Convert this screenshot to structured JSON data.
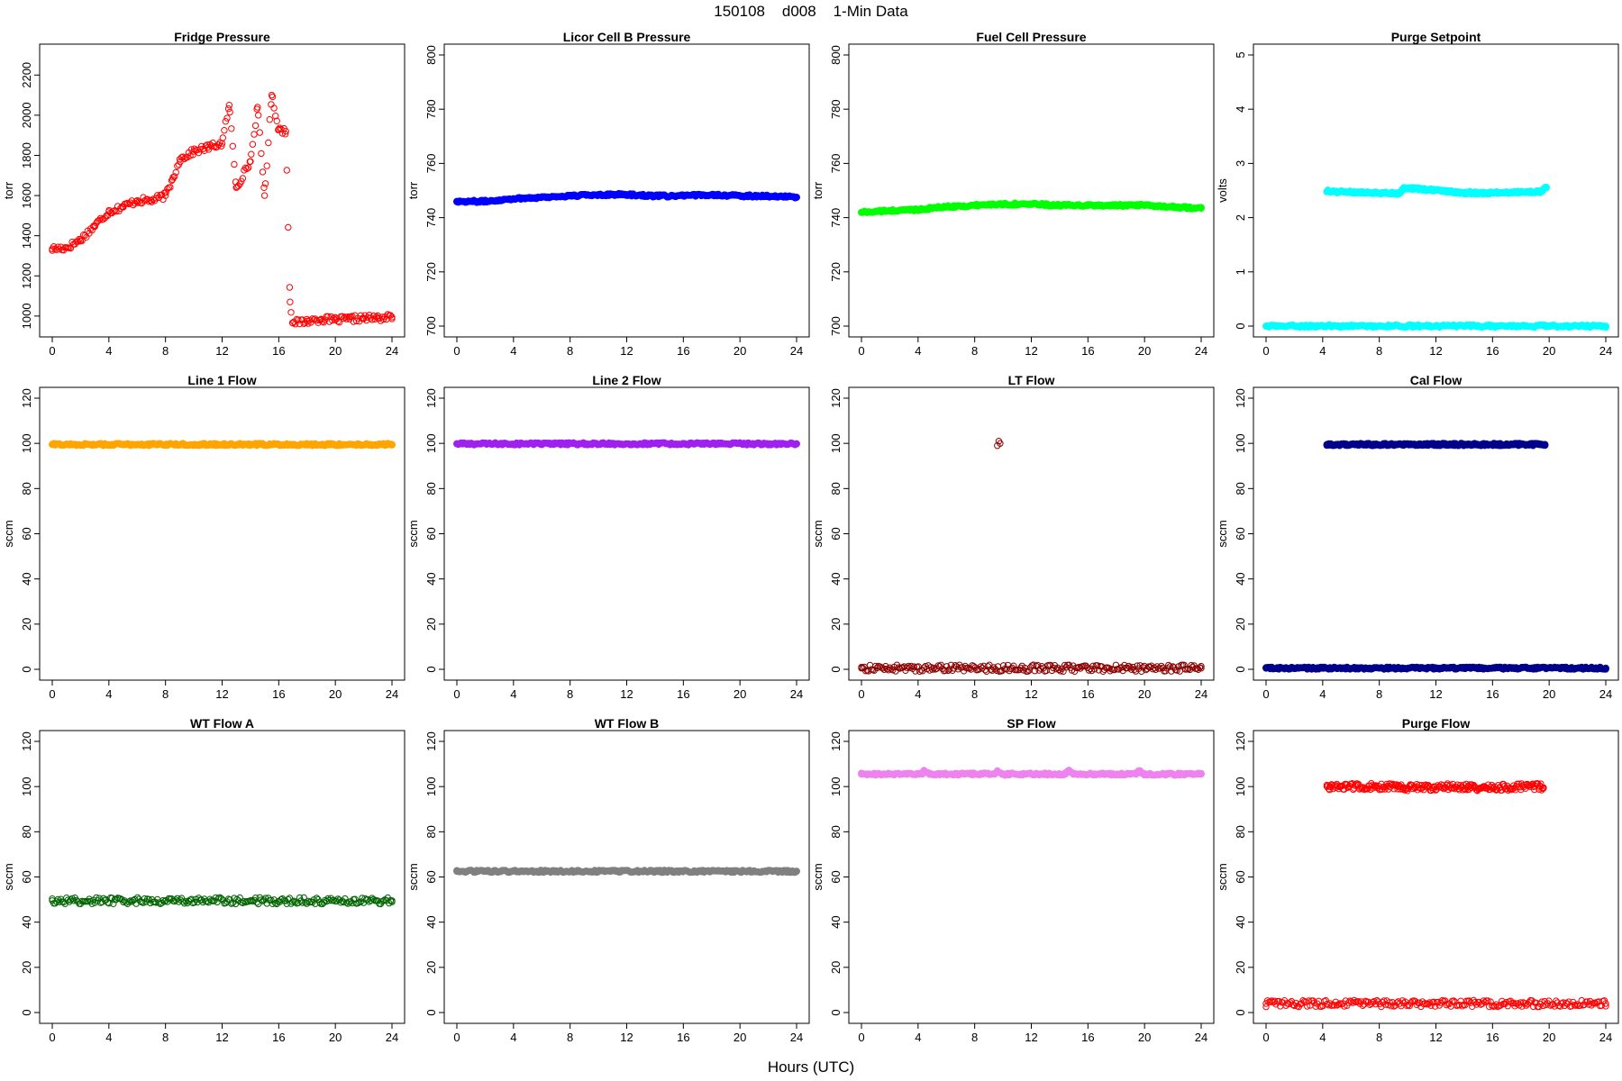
{
  "figure": {
    "title": "150108    d008    1-Min Data",
    "xlabel": "Hours (UTC)"
  },
  "chart_data": [
    {
      "type": "scatter",
      "title": "Fridge Pressure",
      "ylabel": "torr",
      "xlim": [
        0,
        24
      ],
      "ylim": [
        950,
        2300
      ],
      "xticks": [
        0,
        4,
        8,
        12,
        16,
        20,
        24
      ],
      "yticks": [
        1000,
        1200,
        1400,
        1600,
        1800,
        2000,
        2200
      ],
      "color": "#ff0000",
      "marker": "open-circle",
      "grid": false,
      "series": [
        {
          "x": [
            0,
            1,
            2,
            3,
            4,
            5,
            6,
            7,
            8,
            8.5,
            9,
            10,
            11,
            12,
            12.5,
            13,
            14,
            14.5,
            15,
            15.5,
            16,
            16.5,
            16.8,
            17,
            18,
            19,
            20,
            21,
            22,
            23,
            24
          ],
          "y": [
            1335,
            1340,
            1380,
            1450,
            1520,
            1545,
            1575,
            1575,
            1600,
            1680,
            1780,
            1820,
            1840,
            1860,
            2050,
            1640,
            1770,
            2040,
            1600,
            2100,
            1930,
            1920,
            1070,
            965,
            975,
            985,
            980,
            985,
            990,
            990,
            995
          ]
        }
      ]
    },
    {
      "type": "scatter",
      "title": "Licor Cell B Pressure",
      "ylabel": "torr",
      "xlim": [
        0,
        24
      ],
      "ylim": [
        700,
        800
      ],
      "xticks": [
        0,
        4,
        8,
        12,
        16,
        20,
        24
      ],
      "yticks": [
        700,
        720,
        740,
        760,
        780,
        800
      ],
      "color": "#0000ff",
      "marker": "circle",
      "grid": false,
      "series": [
        {
          "x": [
            0,
            2,
            4,
            6,
            8,
            10,
            12,
            14,
            16,
            18,
            20,
            22,
            24
          ],
          "y": [
            746,
            746,
            747,
            747.5,
            748,
            748.5,
            748.5,
            748,
            748,
            748.5,
            748,
            748,
            747.5
          ]
        }
      ]
    },
    {
      "type": "scatter",
      "title": "Fuel Cell Pressure",
      "ylabel": "torr",
      "xlim": [
        0,
        24
      ],
      "ylim": [
        700,
        800
      ],
      "xticks": [
        0,
        4,
        8,
        12,
        16,
        20,
        24
      ],
      "yticks": [
        700,
        720,
        740,
        760,
        780,
        800
      ],
      "color": "#00ff00",
      "marker": "circle",
      "grid": false,
      "series": [
        {
          "x": [
            0,
            2,
            4,
            6,
            8,
            10,
            12,
            14,
            16,
            18,
            20,
            22,
            24
          ],
          "y": [
            742,
            742.5,
            743,
            744,
            744.5,
            745,
            745,
            744.5,
            744.5,
            744.5,
            744.5,
            744,
            743.5
          ]
        }
      ]
    },
    {
      "type": "scatter",
      "title": "Purge Setpoint",
      "ylabel": "volts",
      "xlim": [
        0,
        24
      ],
      "ylim": [
        0,
        5
      ],
      "xticks": [
        0,
        4,
        8,
        12,
        16,
        20,
        24
      ],
      "yticks": [
        0,
        1,
        2,
        3,
        4,
        5
      ],
      "color": "#00ffff",
      "marker": "circle",
      "grid": false,
      "series": [
        {
          "x": [
            0,
            4,
            8,
            12,
            16,
            20,
            24
          ],
          "y": [
            0,
            0,
            0,
            0,
            0,
            0,
            0
          ]
        },
        {
          "x": [
            4.3,
            4.4,
            4.5,
            9.4,
            9.6,
            9.8,
            14.3,
            14.4,
            14.5,
            19.4,
            19.6,
            19.8
          ],
          "y": [
            2.48,
            2.5,
            2.48,
            2.45,
            2.5,
            2.55,
            2.45,
            2.48,
            2.45,
            2.48,
            2.52,
            2.55
          ]
        }
      ]
    },
    {
      "type": "scatter",
      "title": "Line 1 Flow",
      "ylabel": "sccm",
      "xlim": [
        0,
        24
      ],
      "ylim": [
        0,
        120
      ],
      "xticks": [
        0,
        4,
        8,
        12,
        16,
        20,
        24
      ],
      "yticks": [
        0,
        20,
        40,
        60,
        80,
        100,
        120
      ],
      "color": "#ffa500",
      "marker": "circle",
      "grid": false,
      "series": [
        {
          "x": [
            0,
            24
          ],
          "y": [
            99.5,
            99.5
          ]
        }
      ]
    },
    {
      "type": "scatter",
      "title": "Line 2 Flow",
      "ylabel": "sccm",
      "xlim": [
        0,
        24
      ],
      "ylim": [
        0,
        120
      ],
      "xticks": [
        0,
        4,
        8,
        12,
        16,
        20,
        24
      ],
      "yticks": [
        0,
        20,
        40,
        60,
        80,
        100,
        120
      ],
      "color": "#a020f0",
      "marker": "circle",
      "grid": false,
      "series": [
        {
          "x": [
            0,
            24
          ],
          "y": [
            99.8,
            99.8
          ]
        }
      ]
    },
    {
      "type": "scatter",
      "title": "LT Flow",
      "ylabel": "sccm",
      "xlim": [
        0,
        24
      ],
      "ylim": [
        0,
        120
      ],
      "xticks": [
        0,
        4,
        8,
        12,
        16,
        20,
        24
      ],
      "yticks": [
        0,
        20,
        40,
        60,
        80,
        100,
        120
      ],
      "color": "#8b0000",
      "marker": "open-circle",
      "grid": false,
      "series": [
        {
          "x": [
            0,
            24
          ],
          "y": [
            0.5,
            0.5
          ]
        },
        {
          "x": [
            9.6,
            9.7,
            9.8
          ],
          "y": [
            99,
            101,
            100
          ]
        }
      ]
    },
    {
      "type": "scatter",
      "title": "Cal Flow",
      "ylabel": "sccm",
      "xlim": [
        0,
        24
      ],
      "ylim": [
        0,
        120
      ],
      "xticks": [
        0,
        4,
        8,
        12,
        16,
        20,
        24
      ],
      "yticks": [
        0,
        20,
        40,
        60,
        80,
        100,
        120
      ],
      "color": "#00008b",
      "marker": "circle",
      "grid": false,
      "series": [
        {
          "x": [
            0,
            24
          ],
          "y": [
            0.5,
            0.5
          ]
        },
        {
          "x": [
            4.3,
            4.5,
            9.3,
            9.5,
            9.9,
            14.3,
            14.5,
            19.3,
            19.5,
            19.7
          ],
          "y": [
            99.5,
            99.5,
            99.5,
            99.5,
            99.5,
            99.5,
            99.5,
            99.5,
            99.5,
            99.5
          ]
        }
      ]
    },
    {
      "type": "scatter",
      "title": "WT Flow A",
      "ylabel": "sccm",
      "xlim": [
        0,
        24
      ],
      "ylim": [
        0,
        120
      ],
      "xticks": [
        0,
        4,
        8,
        12,
        16,
        20,
        24
      ],
      "yticks": [
        0,
        20,
        40,
        60,
        80,
        100,
        120
      ],
      "color": "#006400",
      "marker": "open-circle",
      "grid": false,
      "series": [
        {
          "x": [
            0,
            24
          ],
          "y": [
            49.5,
            49.5
          ]
        }
      ]
    },
    {
      "type": "scatter",
      "title": "WT Flow B",
      "ylabel": "sccm",
      "xlim": [
        0,
        24
      ],
      "ylim": [
        0,
        120
      ],
      "xticks": [
        0,
        4,
        8,
        12,
        16,
        20,
        24
      ],
      "yticks": [
        0,
        20,
        40,
        60,
        80,
        100,
        120
      ],
      "color": "#808080",
      "marker": "circle",
      "grid": false,
      "series": [
        {
          "x": [
            0,
            24
          ],
          "y": [
            62.5,
            62.5
          ]
        }
      ]
    },
    {
      "type": "scatter",
      "title": "SP Flow",
      "ylabel": "sccm",
      "xlim": [
        0,
        24
      ],
      "ylim": [
        0,
        120
      ],
      "xticks": [
        0,
        4,
        8,
        12,
        16,
        20,
        24
      ],
      "yticks": [
        0,
        20,
        40,
        60,
        80,
        100,
        120
      ],
      "color": "#ee82ee",
      "marker": "circle",
      "grid": false,
      "series": [
        {
          "x": [
            0,
            4.3,
            4.4,
            4.8,
            9.4,
            9.6,
            10,
            14.4,
            14.6,
            15,
            19.4,
            19.6,
            20,
            24
          ],
          "y": [
            105.5,
            105.5,
            107,
            105.5,
            105.5,
            107,
            105.5,
            105.5,
            107,
            105.5,
            105.5,
            107,
            105.5,
            105.5
          ]
        }
      ]
    },
    {
      "type": "scatter",
      "title": "Purge Flow",
      "ylabel": "sccm",
      "xlim": [
        0,
        24
      ],
      "ylim": [
        0,
        120
      ],
      "xticks": [
        0,
        4,
        8,
        12,
        16,
        20,
        24
      ],
      "yticks": [
        0,
        20,
        40,
        60,
        80,
        100,
        120
      ],
      "color": "#ff0000",
      "marker": "open-circle",
      "grid": false,
      "series": [
        {
          "x": [
            0,
            24
          ],
          "y": [
            4,
            4
          ]
        },
        {
          "x": [
            4.3,
            4.5,
            9.3,
            9.5,
            9.7,
            14.3,
            14.5,
            19.4,
            19.6
          ],
          "y": [
            100,
            100,
            100,
            100,
            99.5,
            100,
            99.5,
            100,
            99.5
          ]
        }
      ]
    }
  ]
}
